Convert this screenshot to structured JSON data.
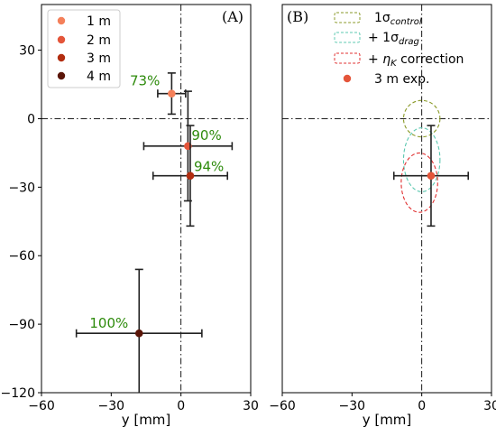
{
  "colors": {
    "series": [
      "#f4805a",
      "#e4553a",
      "#b22d10",
      "#5a1508"
    ],
    "errorbar": "#222222",
    "annotation": "#2e8b0c",
    "ellipse_control": "#8a9a28",
    "ellipse_drag": "#5cc8b0",
    "ellipse_eta": "#e03030",
    "exp_marker": "#e4553a"
  },
  "chart_data": [
    {
      "panel": "A",
      "type": "scatter",
      "panel_label": "(A)",
      "xlabel": "y [mm]",
      "ylabel": "",
      "xlim": [
        -60,
        30
      ],
      "ylim": [
        -120,
        50
      ],
      "xticks": [
        -60,
        -30,
        0,
        30
      ],
      "yticks": [
        -120,
        -90,
        -60,
        -30,
        0,
        30
      ],
      "grid": false,
      "reference_lines": [
        "x = 0 (dash-dot)",
        "y = 0 (dash-dot)"
      ],
      "legend_position": "top-left",
      "series": [
        {
          "name": "1 m",
          "x": -4,
          "y": 11,
          "xerr": 6,
          "yerr": 9,
          "annotation": "73%"
        },
        {
          "name": "2 m",
          "x": 3,
          "y": -12,
          "xerr": 19,
          "yerr": 24,
          "annotation": "90%"
        },
        {
          "name": "3 m",
          "x": 4,
          "y": -25,
          "xerr": 16,
          "yerr": 22,
          "annotation": "94%"
        },
        {
          "name": "4 m",
          "x": -18,
          "y": -94,
          "xerr": 27,
          "yerr": 28,
          "annotation": "100%"
        }
      ]
    },
    {
      "panel": "B",
      "type": "scatter",
      "panel_label": "(B)",
      "xlabel": "y [mm]",
      "ylabel": "",
      "xlim": [
        -60,
        30
      ],
      "ylim": [
        -120,
        50
      ],
      "xticks": [
        -60,
        -30,
        0,
        30
      ],
      "grid": false,
      "reference_lines": [
        "x = 0 (dash-dot)",
        "y = 0 (dash-dot)"
      ],
      "legend_position": "top-right",
      "ellipses": [
        {
          "name": "1σ_control",
          "cx": 0,
          "cy": 0,
          "rx": 7,
          "ry": 8
        },
        {
          "name": "+ 1σ_drag",
          "cx": 0,
          "cy": -18,
          "rx": 7,
          "ry": 14
        },
        {
          "name": "+ η_K correction",
          "cx": -1,
          "cy": -28,
          "rx": 7,
          "ry": 13
        }
      ],
      "points": [
        {
          "name": "3 m exp.",
          "x": 4,
          "y": -25,
          "xerr": 16,
          "yerr": 22
        }
      ]
    }
  ]
}
